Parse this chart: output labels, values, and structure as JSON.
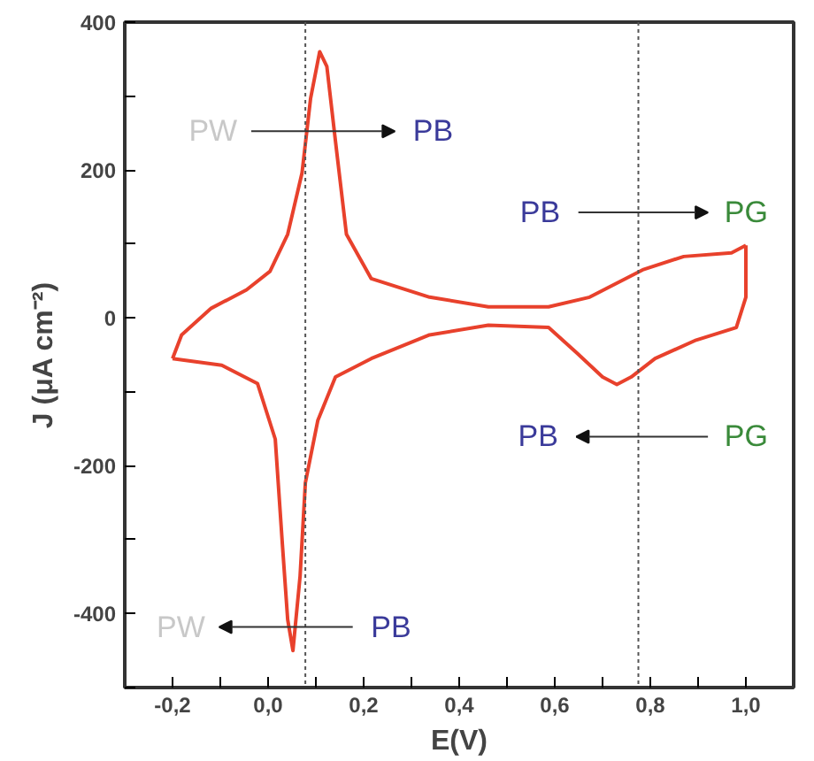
{
  "chart_data": {
    "type": "line",
    "xlabel": "E(V)",
    "ylabel": "J (μA cm⁻²)",
    "xlim": [
      -0.3,
      1.1
    ],
    "ylim": [
      -500,
      400
    ],
    "xticks": [
      {
        "value": -0.3,
        "label": null
      },
      {
        "value": -0.2,
        "label": "-0,2"
      },
      {
        "value": -0.1,
        "label": null
      },
      {
        "value": 0.0,
        "label": "0,0"
      },
      {
        "value": 0.1,
        "label": null
      },
      {
        "value": 0.2,
        "label": "0,2"
      },
      {
        "value": 0.3,
        "label": null
      },
      {
        "value": 0.4,
        "label": "0,4"
      },
      {
        "value": 0.5,
        "label": null
      },
      {
        "value": 0.6,
        "label": "0,6"
      },
      {
        "value": 0.7,
        "label": null
      },
      {
        "value": 0.8,
        "label": "0,8"
      },
      {
        "value": 0.9,
        "label": null
      },
      {
        "value": 1.0,
        "label": "1,0"
      }
    ],
    "yticks": [
      {
        "value": -500,
        "label": null
      },
      -400,
      {
        "value": -300,
        "label": null
      },
      -200,
      {
        "value": -100,
        "label": null
      },
      0,
      {
        "value": 100,
        "label": null
      },
      200,
      {
        "value": 300,
        "label": null
      },
      400
    ],
    "grid": false,
    "marker": "none",
    "line_style": "solid",
    "series": [
      {
        "color": "#e8412c",
        "x": [
          -0.2,
          -0.181,
          -0.119,
          -0.045,
          0.004,
          0.041,
          0.071,
          0.089,
          0.108,
          0.123,
          0.141,
          0.164,
          0.216,
          0.338,
          0.461,
          0.587,
          0.673,
          0.784,
          0.87,
          0.97,
          1.0
        ],
        "values": [
          -55,
          -23,
          13,
          38,
          63,
          113,
          196,
          297,
          360,
          340,
          239,
          113,
          53,
          28,
          15,
          15,
          28,
          65,
          83,
          88,
          98
        ]
      },
      {
        "color": "#e8412c",
        "x": [
          1.0,
          1.0,
          0.98,
          0.896,
          0.81,
          0.76,
          0.73,
          0.7,
          0.647,
          0.587,
          0.461,
          0.338,
          0.216,
          0.141,
          0.104,
          0.078,
          0.067,
          0.052,
          0.041,
          0.03,
          0.015,
          -0.022,
          -0.097,
          -0.2
        ],
        "values": [
          98,
          28,
          -13,
          -30,
          -55,
          -80,
          -90,
          -80,
          -48,
          -13,
          -10,
          -23,
          -55,
          -80,
          -139,
          -223,
          -349,
          -450,
          -408,
          -307,
          -164,
          -89,
          -64,
          -55
        ]
      }
    ],
    "ref_lines": [
      {
        "axis": "x",
        "value": 0.078,
        "label": null,
        "color": "#555555",
        "line_style": "dotted"
      },
      {
        "axis": "x",
        "value": 0.775,
        "label": null,
        "color": "#555555",
        "line_style": "dotted"
      }
    ],
    "annotations": [
      "PW",
      "PB",
      "PB",
      "PG",
      "PG",
      "PB",
      "PB",
      "PW"
    ]
  }
}
